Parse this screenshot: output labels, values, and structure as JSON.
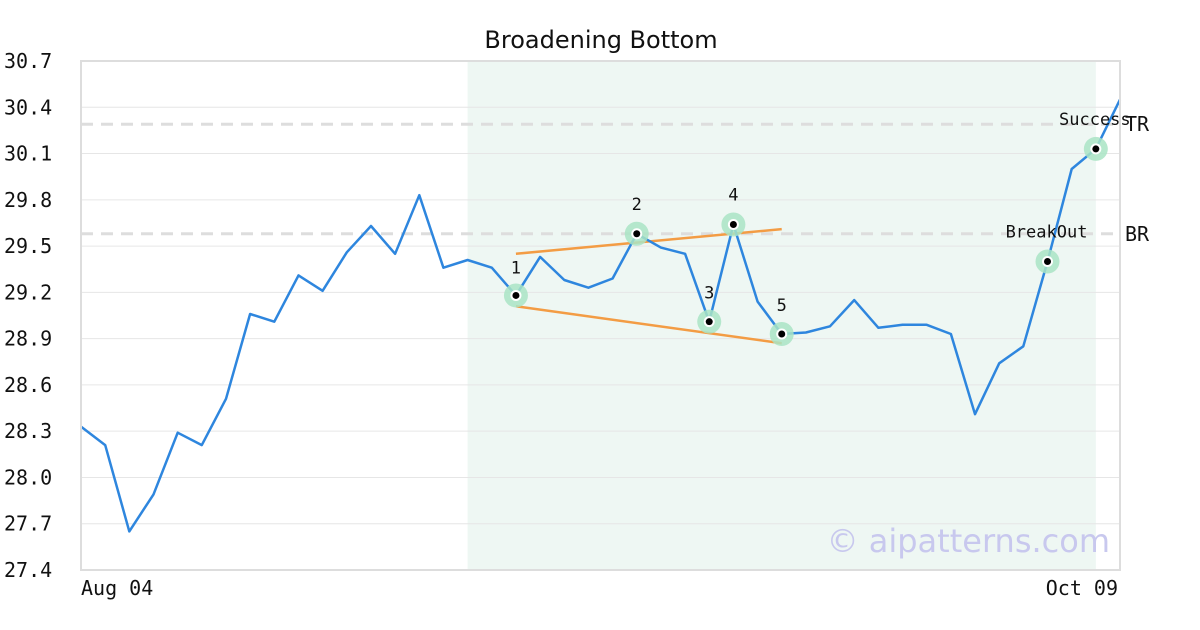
{
  "chart_data": {
    "type": "line",
    "title": "Broadening Bottom",
    "xlabel": "",
    "ylabel": "",
    "ylim": [
      27.4,
      30.7
    ],
    "yticks": [
      "27.4",
      "27.7",
      "28.0",
      "28.3",
      "28.6",
      "28.9",
      "29.2",
      "29.5",
      "29.8",
      "30.1",
      "30.4",
      "30.7"
    ],
    "x_tick_labels": [
      "Aug 04",
      "Oct 09"
    ],
    "grid": "horizontal",
    "series": [
      {
        "values": [
          28.33,
          28.21,
          27.65,
          27.89,
          28.29,
          28.21,
          28.51,
          29.06,
          29.01,
          29.31,
          29.21,
          29.46,
          29.63,
          29.45,
          29.83,
          29.36,
          29.41,
          29.36,
          29.18,
          29.43,
          29.28,
          29.23,
          29.29,
          29.58,
          29.49,
          29.45,
          29.01,
          29.64,
          29.14,
          28.93,
          28.94,
          28.98,
          29.15,
          28.97,
          28.99,
          28.99,
          28.93,
          28.41,
          28.74,
          28.85,
          29.4,
          30.0,
          30.13,
          30.45
        ]
      }
    ],
    "highlight_range": {
      "start_index": 16,
      "end_index": 42
    },
    "pattern_points": [
      {
        "label": "1",
        "index": 18,
        "value": 29.18
      },
      {
        "label": "2",
        "index": 23,
        "value": 29.58
      },
      {
        "label": "3",
        "index": 26,
        "value": 29.01
      },
      {
        "label": "4",
        "index": 27,
        "value": 29.64
      },
      {
        "label": "5",
        "index": 29,
        "value": 28.93
      }
    ],
    "trendlines": [
      {
        "from": {
          "index": 18,
          "value": 29.45
        },
        "to": {
          "index": 29,
          "value": 29.61
        }
      },
      {
        "from": {
          "index": 18,
          "value": 29.11
        },
        "to": {
          "index": 29,
          "value": 28.87
        }
      }
    ],
    "annotations": [
      {
        "label": "BreakOut",
        "index": 40,
        "value": 29.4
      },
      {
        "label": "Success",
        "index": 42,
        "value": 30.13
      }
    ],
    "reference_lines": [
      {
        "label": "TR",
        "value": 30.29
      },
      {
        "label": "BR",
        "value": 29.58
      }
    ],
    "watermark": "© aipatterns.com",
    "colors": {
      "line": "#2e86de",
      "trendline": "#f39c44",
      "highlight": "#eef7f3",
      "marker_halo": "#a9e4c4",
      "reference": "#dddddd",
      "grid": "#e6e6e6",
      "frame": "#dddddd"
    }
  }
}
